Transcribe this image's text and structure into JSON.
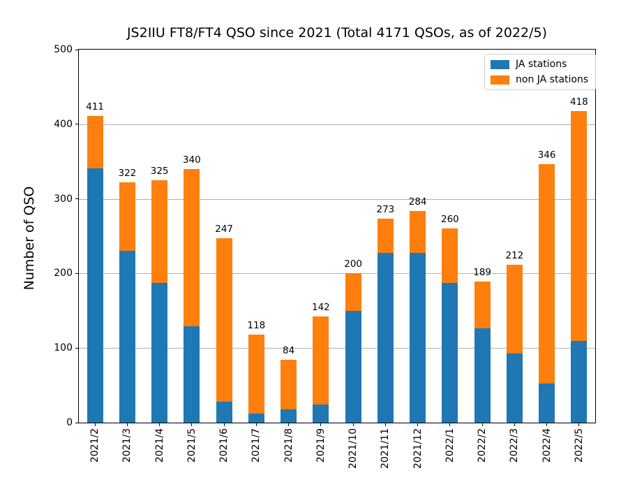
{
  "figure": {
    "title": "JS2IIU FT8/FT4 QSO since 2021 (Total 4171 QSOs, as of 2022/5)",
    "ylabel": "Number of QSO"
  },
  "legend": {
    "items": [
      {
        "label": "JA stations",
        "color": "#1f77b4"
      },
      {
        "label": "non JA stations",
        "color": "#ff7f0e"
      }
    ]
  },
  "chart_data": {
    "type": "bar",
    "stacked": true,
    "title": "JS2IIU FT8/FT4 QSO since 2021 (Total 4171 QSOs, as of 2022/5)",
    "xlabel": "",
    "ylabel": "Number of QSO",
    "categories": [
      "2021/2",
      "2021/3",
      "2021/4",
      "2021/5",
      "2021/6",
      "2021/7",
      "2021/8",
      "2021/9",
      "2021/10",
      "2021/11",
      "2021/12",
      "2022/1",
      "2022/2",
      "2022/3",
      "2022/4",
      "2022/5"
    ],
    "series": [
      {
        "name": "JA stations",
        "color": "#1f77b4",
        "values": [
          341,
          230,
          187,
          129,
          28,
          12,
          18,
          24,
          150,
          228,
          228,
          187,
          126,
          93,
          52,
          110
        ]
      },
      {
        "name": "non JA stations",
        "color": "#ff7f0e",
        "values": [
          70,
          92,
          138,
          211,
          219,
          106,
          66,
          118,
          50,
          45,
          56,
          73,
          63,
          119,
          294,
          308
        ]
      }
    ],
    "bar_totals": [
      411,
      322,
      325,
      340,
      247,
      118,
      84,
      142,
      200,
      273,
      284,
      260,
      189,
      212,
      346,
      418
    ],
    "ylim": [
      0,
      500
    ],
    "yticks": [
      0,
      100,
      200,
      300,
      400,
      500
    ],
    "grid": true,
    "grid_color": "#b0b0b0",
    "legend_position": "upper right"
  }
}
